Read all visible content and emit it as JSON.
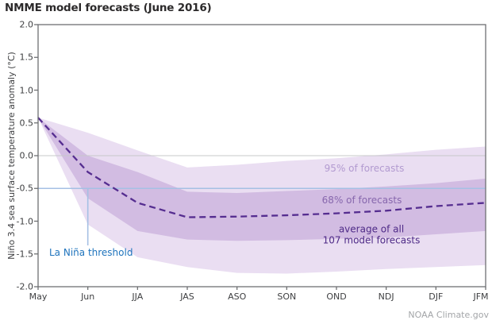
{
  "credit": "NOAA Climate.gov",
  "chart_data": {
    "type": "area",
    "title": "NMME model forecasts (June 2016)",
    "xlabel": "",
    "ylabel": "Niño 3.4 sea surface temperature anomaly (°C)",
    "x_labels": [
      "May",
      "Jun",
      "JJA",
      "JAS",
      "ASO",
      "SON",
      "OND",
      "NDJ",
      "DJF",
      "JFM"
    ],
    "ylim": [
      -2.0,
      2.0
    ],
    "yticks": [
      "2.0",
      "1.5",
      "1.0",
      "0.5",
      "0.0",
      "-0.5",
      "-1.0",
      "-1.5",
      "-2.0"
    ],
    "grid": "zero-line-only",
    "legend_position": "inline-annotations",
    "series": [
      {
        "id": "band95",
        "name": "95% of forecasts",
        "type": "band",
        "color": "#eadef2",
        "label_color": "#b29ad0",
        "upper": [
          0.58,
          0.35,
          0.08,
          -0.18,
          -0.14,
          -0.08,
          -0.04,
          0.02,
          0.09,
          0.14
        ],
        "lower": [
          0.58,
          -1.05,
          -1.55,
          -1.7,
          -1.79,
          -1.8,
          -1.77,
          -1.73,
          -1.7,
          -1.67
        ]
      },
      {
        "id": "band68",
        "name": "68% of forecasts",
        "type": "band",
        "color": "#d2bce2",
        "label_color": "#8767ad",
        "upper": [
          0.58,
          0.0,
          -0.25,
          -0.55,
          -0.57,
          -0.54,
          -0.51,
          -0.47,
          -0.42,
          -0.35
        ],
        "lower": [
          0.58,
          -0.65,
          -1.15,
          -1.28,
          -1.3,
          -1.29,
          -1.27,
          -1.25,
          -1.2,
          -1.15
        ]
      },
      {
        "id": "average",
        "name": "average of all 107 model forecasts",
        "type": "line",
        "style": "dashed",
        "color": "#552d90",
        "values": [
          0.58,
          -0.25,
          -0.72,
          -0.94,
          -0.93,
          -0.91,
          -0.88,
          -0.84,
          -0.77,
          -0.72
        ]
      }
    ],
    "threshold": {
      "value": -0.5,
      "label": "La Niña threshold",
      "line_color": "#a5c0e4",
      "label_color": "#1f74bd",
      "marker_x_index": 1
    },
    "annotations": {
      "band95": {
        "text": "95% of forecasts"
      },
      "band68": {
        "text": "68% of forecasts"
      },
      "average": {
        "line1": "average of all",
        "line2": "107 model forecasts"
      }
    },
    "colors": {
      "frame": "#6e6f72",
      "zero_line": "#c7c8ca",
      "tick_label": "#3e3f41",
      "title": "#2c2a2b",
      "credit": "#a3a5a8"
    }
  }
}
